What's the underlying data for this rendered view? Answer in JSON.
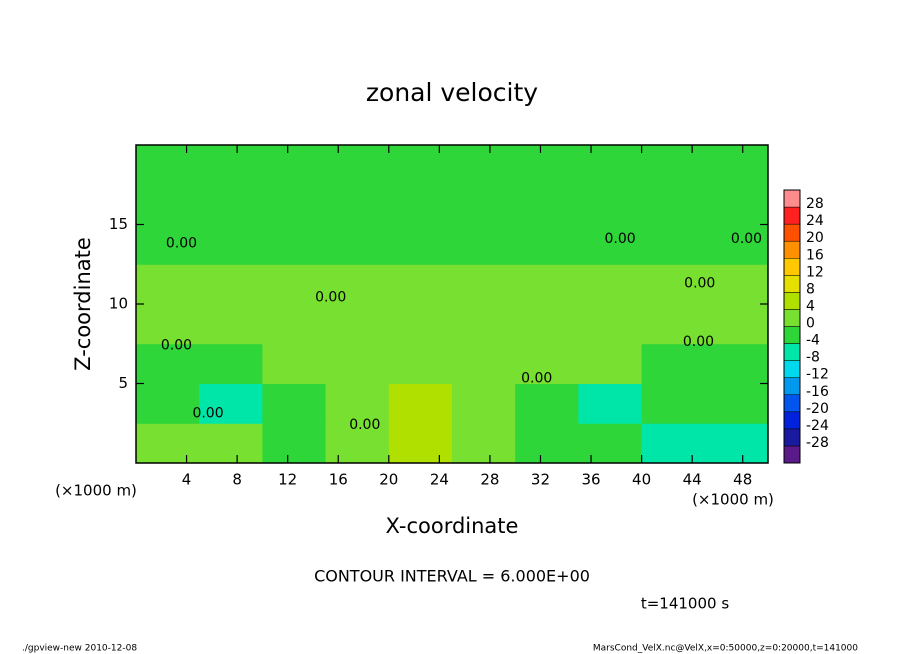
{
  "chart_data": {
    "type": "contour",
    "title": "zonal velocity",
    "xlabel": "X-coordinate",
    "ylabel": "Z-coordinate",
    "xunit": "(×1000 m)",
    "yunit": "(×1000 m)",
    "xlim": [
      0,
      50
    ],
    "ylim": [
      0,
      20
    ],
    "xticks": [
      4,
      8,
      12,
      16,
      20,
      24,
      28,
      32,
      36,
      40,
      44,
      48
    ],
    "yticks": [
      5,
      10,
      15
    ],
    "x": [
      2.5,
      7.5,
      12.5,
      17.5,
      22.5,
      27.5,
      32.5,
      37.5,
      42.5,
      47.5
    ],
    "y": [
      1.25,
      3.75,
      6.25,
      8.75,
      11.25,
      13.75,
      16.25,
      18.75
    ],
    "z": [
      [
        2,
        3,
        -2,
        3,
        4,
        1,
        -2,
        -3,
        -6,
        -6
      ],
      [
        -3,
        -6,
        -2,
        2,
        5,
        2,
        -1,
        -6,
        -3,
        -4
      ],
      [
        -2,
        -3,
        1,
        1,
        2,
        3,
        2,
        1,
        -2,
        -1
      ],
      [
        2,
        3,
        3,
        3,
        3,
        2,
        3,
        2,
        2,
        1
      ],
      [
        1,
        1,
        2,
        2,
        1,
        1,
        0,
        1,
        0,
        0
      ],
      [
        -1,
        -2,
        -2,
        -2,
        -2,
        -1,
        -1,
        -1,
        -2,
        -1
      ],
      [
        -2,
        -2,
        -1,
        -2,
        -2,
        -2,
        -2,
        -2,
        -1,
        -2
      ],
      [
        -2,
        -2,
        -2,
        -1,
        -1,
        -2,
        -2,
        -2,
        -2,
        -2
      ]
    ],
    "contour_labels": [
      {
        "x": 3.6,
        "y": 13.8,
        "label": "0.00"
      },
      {
        "x": 38.3,
        "y": 14.1,
        "label": "0.00"
      },
      {
        "x": 48.3,
        "y": 14.1,
        "label": "0.00"
      },
      {
        "x": 15.4,
        "y": 10.4,
        "label": "0.00"
      },
      {
        "x": 44.6,
        "y": 11.3,
        "label": "0.00"
      },
      {
        "x": 3.2,
        "y": 7.4,
        "label": "0.00"
      },
      {
        "x": 44.5,
        "y": 7.6,
        "label": "0.00"
      },
      {
        "x": 31.7,
        "y": 5.3,
        "label": "0.00"
      },
      {
        "x": 5.7,
        "y": 3.1,
        "label": "0.00"
      },
      {
        "x": 18.1,
        "y": 2.4,
        "label": "0.00"
      }
    ],
    "colorbar": {
      "clim": [
        -32,
        32
      ],
      "ticks": [
        -28,
        -24,
        -20,
        -16,
        -12,
        -8,
        -4,
        0,
        4,
        8,
        12,
        16,
        20,
        24,
        28
      ],
      "colors": [
        "#5a1a8a",
        "#1a1aa0",
        "#0022dd",
        "#0055ee",
        "#0099ee",
        "#00d8ee",
        "#00e6a8",
        "#2ed63a",
        "#77e030",
        "#b0e000",
        "#e6e000",
        "#ffc800",
        "#ff9000",
        "#ff5000",
        "#ff2020",
        "#ff8c8c"
      ]
    },
    "annotations": {
      "contour_interval": "CONTOUR INTERVAL = 6.000E+00",
      "time": "t=141000 s",
      "footer_left": "./gpview-new  2010-12-08",
      "footer_right": "MarsCond_VelX.nc@VelX,x=0:50000,z=0:20000,t=141000"
    }
  }
}
